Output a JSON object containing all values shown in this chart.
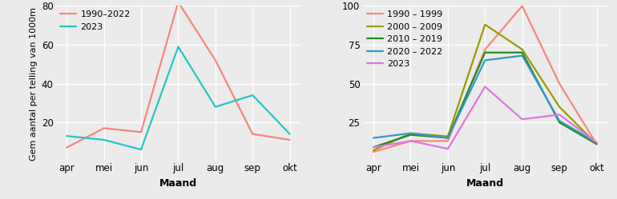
{
  "months": [
    "apr",
    "mei",
    "jun",
    "jul",
    "aug",
    "sep",
    "okt"
  ],
  "left": {
    "series": [
      {
        "key": "1990-2022",
        "values": [
          7,
          17,
          15,
          82,
          52,
          14,
          11
        ],
        "color": "#F4887C",
        "label": "1990–2022"
      },
      {
        "key": "2023",
        "values": [
          13,
          11,
          6,
          59,
          28,
          34,
          14
        ],
        "color": "#26C6C6",
        "label": "2023"
      }
    ],
    "ylabel": "Gem aantal per telling van 1000m",
    "xlabel": "Maand",
    "ylim": [
      0,
      80
    ],
    "yticks": [
      20,
      40,
      60,
      80
    ]
  },
  "right": {
    "series": [
      {
        "key": "1990-1999",
        "values": [
          6,
          13,
          13,
          72,
          100,
          50,
          11
        ],
        "color": "#F4887C",
        "label": "1990 – 1999"
      },
      {
        "key": "2000-2009",
        "values": [
          7,
          18,
          16,
          88,
          72,
          35,
          11
        ],
        "color": "#9B9B00",
        "label": "2000 – 2009"
      },
      {
        "key": "2010-2019",
        "values": [
          9,
          17,
          15,
          70,
          70,
          25,
          11
        ],
        "color": "#228B22",
        "label": "2010 – 2019"
      },
      {
        "key": "2020-2022",
        "values": [
          15,
          18,
          15,
          65,
          68,
          26,
          12
        ],
        "color": "#3399CC",
        "label": "2020 – 2022"
      },
      {
        "key": "2023",
        "values": [
          9,
          13,
          8,
          48,
          27,
          30,
          12
        ],
        "color": "#DD77DD",
        "label": "2023"
      }
    ],
    "xlabel": "Maand",
    "ylim": [
      0,
      100
    ],
    "yticks": [
      25,
      50,
      75,
      100
    ]
  },
  "bg_color": "#EBEBEB",
  "grid_color": "#FFFFFF",
  "line_width": 1.6,
  "font_size": 8.5
}
